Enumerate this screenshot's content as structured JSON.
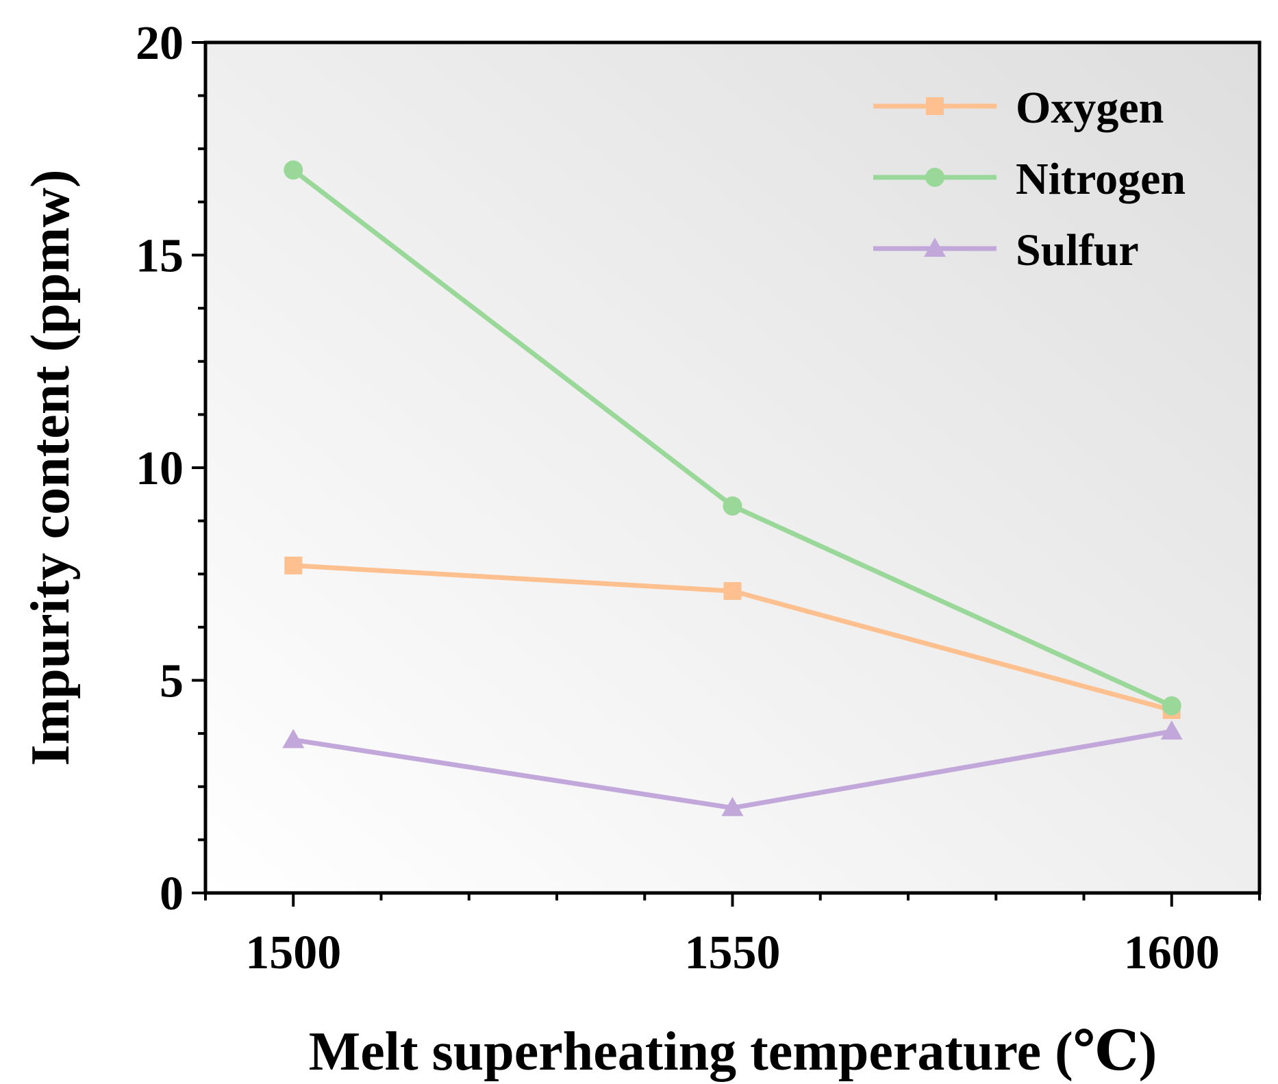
{
  "chart_data": {
    "type": "line",
    "title": "",
    "xlabel": "Melt superheating temperature (℃)",
    "ylabel": "Impurity content (ppmw)",
    "x": [
      1500,
      1550,
      1600
    ],
    "x_tick_labels": [
      "1500",
      "1550",
      "1600"
    ],
    "y_tick_labels": [
      "0",
      "5",
      "10",
      "15",
      "20"
    ],
    "xlim": [
      1490,
      1610
    ],
    "ylim": [
      0,
      20
    ],
    "grid": false,
    "legend_position": "top-right",
    "series": [
      {
        "name": "Oxygen",
        "marker": "square",
        "color": "#FFC08F",
        "values": [
          7.7,
          7.1,
          4.3
        ]
      },
      {
        "name": "Nitrogen",
        "marker": "circle",
        "color": "#9AD89A",
        "values": [
          17.0,
          9.1,
          4.4
        ]
      },
      {
        "name": "Sulfur",
        "marker": "triangle",
        "color": "#C2A8DA",
        "values": [
          3.6,
          2.0,
          3.8
        ]
      }
    ]
  }
}
